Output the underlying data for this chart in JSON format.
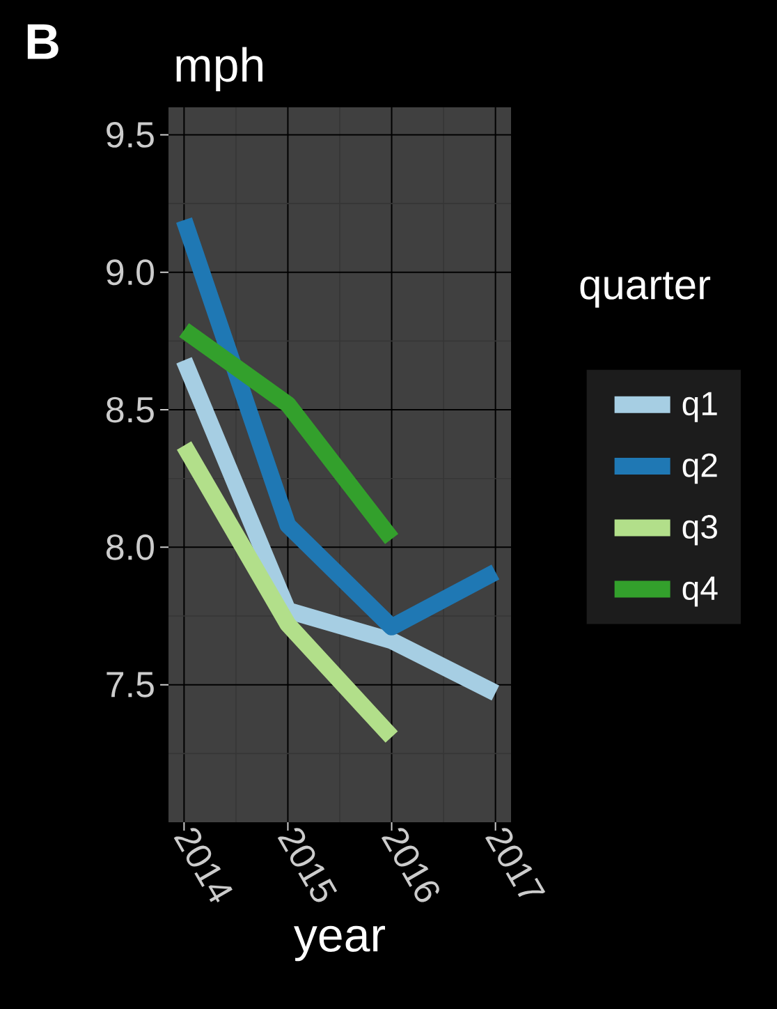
{
  "chart_data": {
    "type": "line",
    "title": "mph",
    "xlabel": "year",
    "legend_title": "quarter",
    "annotations": [
      "B"
    ],
    "x": [
      2014,
      2015,
      2016,
      2017
    ],
    "series": [
      {
        "name": "q1",
        "color": "#a6cee3",
        "values": [
          8.68,
          7.77,
          7.66,
          7.47
        ]
      },
      {
        "name": "q2",
        "color": "#1f78b4",
        "values": [
          9.19,
          8.08,
          7.71,
          7.91
        ]
      },
      {
        "name": "q3",
        "color": "#b2df8a",
        "values": [
          8.37,
          7.72,
          7.31,
          null
        ]
      },
      {
        "name": "q4",
        "color": "#33a02c",
        "values": [
          8.79,
          8.52,
          8.03,
          null
        ]
      }
    ],
    "xlim": [
      2013.85,
      2017.15
    ],
    "ylim": [
      7.0,
      9.6
    ],
    "xticks": [
      2014,
      2015,
      2016,
      2017
    ],
    "yticks": [
      7.5,
      {
        "value": 8,
        "label": "8.0"
      },
      8.5,
      {
        "value": 9,
        "label": "9.0"
      },
      9.5
    ],
    "grid": true,
    "legend": "right",
    "line_style": "solid"
  }
}
